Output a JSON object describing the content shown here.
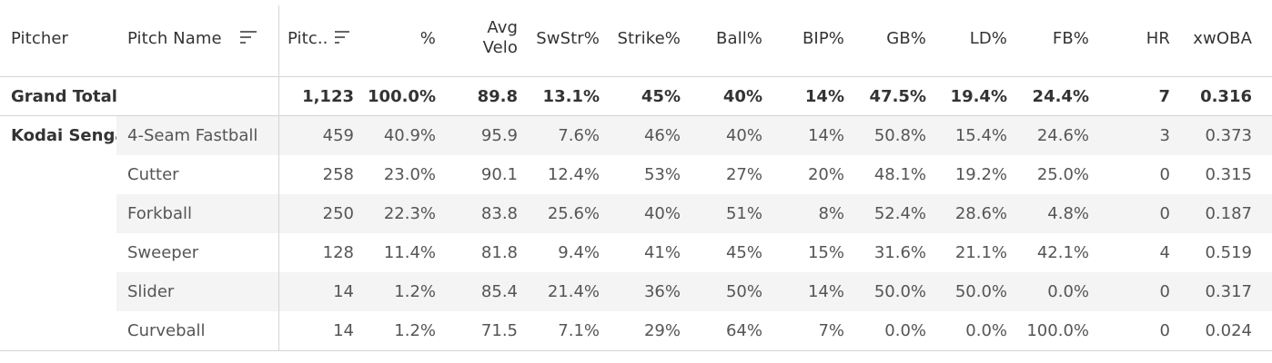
{
  "headers": {
    "pitcher": "Pitcher",
    "pitch_name": "Pitch Name",
    "pitches": "Pitc..",
    "pct": "%",
    "avg_velo": "Avg Velo",
    "swstr": "SwStr%",
    "strike": "Strike%",
    "ball": "Ball%",
    "bip": "BIP%",
    "gb": "GB%",
    "ld": "LD%",
    "fb": "FB%",
    "hr": "HR",
    "xwoba": "xwOBA"
  },
  "grand_total": {
    "label": "Grand Total",
    "pitches": "1,123",
    "pct": "100.0%",
    "avg_velo": "89.8",
    "swstr": "13.1%",
    "strike": "45%",
    "ball": "40%",
    "bip": "14%",
    "gb": "47.5%",
    "ld": "19.4%",
    "fb": "24.4%",
    "hr": "7",
    "xwoba": "0.316"
  },
  "pitcher_name": "Kodai Senga",
  "rows": [
    {
      "pitch": "4-Seam Fastball",
      "pitches": "459",
      "pct": "40.9%",
      "avg_velo": "95.9",
      "swstr": "7.6%",
      "strike": "46%",
      "ball": "40%",
      "bip": "14%",
      "gb": "50.8%",
      "ld": "15.4%",
      "fb": "24.6%",
      "hr": "3",
      "xwoba": "0.373"
    },
    {
      "pitch": "Cutter",
      "pitches": "258",
      "pct": "23.0%",
      "avg_velo": "90.1",
      "swstr": "12.4%",
      "strike": "53%",
      "ball": "27%",
      "bip": "20%",
      "gb": "48.1%",
      "ld": "19.2%",
      "fb": "25.0%",
      "hr": "0",
      "xwoba": "0.315"
    },
    {
      "pitch": "Forkball",
      "pitches": "250",
      "pct": "22.3%",
      "avg_velo": "83.8",
      "swstr": "25.6%",
      "strike": "40%",
      "ball": "51%",
      "bip": "8%",
      "gb": "52.4%",
      "ld": "28.6%",
      "fb": "4.8%",
      "hr": "0",
      "xwoba": "0.187"
    },
    {
      "pitch": "Sweeper",
      "pitches": "128",
      "pct": "11.4%",
      "avg_velo": "81.8",
      "swstr": "9.4%",
      "strike": "41%",
      "ball": "45%",
      "bip": "15%",
      "gb": "31.6%",
      "ld": "21.1%",
      "fb": "42.1%",
      "hr": "4",
      "xwoba": "0.519"
    },
    {
      "pitch": "Slider",
      "pitches": "14",
      "pct": "1.2%",
      "avg_velo": "85.4",
      "swstr": "21.4%",
      "strike": "36%",
      "ball": "50%",
      "bip": "14%",
      "gb": "50.0%",
      "ld": "50.0%",
      "fb": "0.0%",
      "hr": "0",
      "xwoba": "0.317"
    },
    {
      "pitch": "Curveball",
      "pitches": "14",
      "pct": "1.2%",
      "avg_velo": "71.5",
      "swstr": "7.1%",
      "strike": "29%",
      "ball": "64%",
      "bip": "7%",
      "gb": "0.0%",
      "ld": "0.0%",
      "fb": "100.0%",
      "hr": "0",
      "xwoba": "0.024"
    }
  ],
  "icons": {
    "sort": "sort-descending-icon"
  }
}
